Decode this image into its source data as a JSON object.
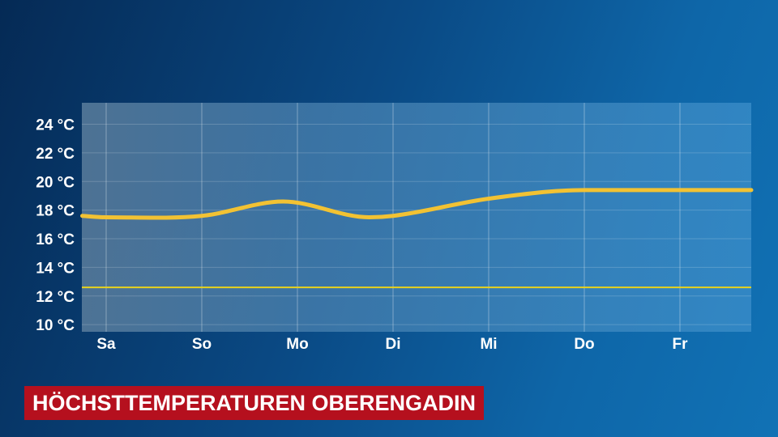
{
  "chart_data": {
    "type": "line",
    "title": "HÖCHSTTEMPERATUREN OBERENGADIN",
    "categories": [
      "Sa",
      "So",
      "Mo",
      "Di",
      "Mi",
      "Do",
      "Fr"
    ],
    "y_ticks": [
      "10 °C",
      "12 °C",
      "14 °C",
      "16 °C",
      "18 °C",
      "20 °C",
      "22 °C",
      "24 °C"
    ],
    "ylim": [
      9.5,
      25.5
    ],
    "series": [
      {
        "color": "#f2c233",
        "points": [
          {
            "x": -0.25,
            "y": 17.6
          },
          {
            "x": 0.0,
            "y": 17.5
          },
          {
            "x": 1.0,
            "y": 17.6
          },
          {
            "x": 1.85,
            "y": 18.6
          },
          {
            "x": 2.75,
            "y": 17.5
          },
          {
            "x": 3.0,
            "y": 17.6
          },
          {
            "x": 4.0,
            "y": 18.8
          },
          {
            "x": 5.0,
            "y": 19.4
          },
          {
            "x": 6.0,
            "y": 19.4
          },
          {
            "x": 6.75,
            "y": 19.4
          }
        ]
      }
    ],
    "reference_line": {
      "y": 12.6,
      "color": "#e8d21c"
    },
    "grid": true
  }
}
